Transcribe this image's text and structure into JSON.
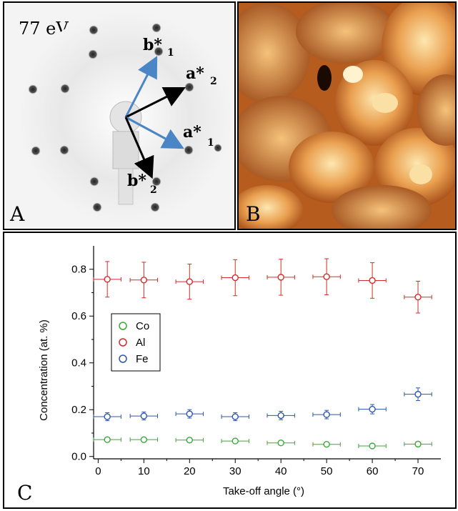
{
  "panels": {
    "a": {
      "letter": "A",
      "energy_label": "77 eV",
      "vectors": [
        {
          "name": "b*",
          "sub": "1",
          "color": "#4a86c6"
        },
        {
          "name": "a*",
          "sub": "2",
          "color": "#000000"
        },
        {
          "name": "a*",
          "sub": "1",
          "color": "#4a86c6"
        },
        {
          "name": "b*",
          "sub": "2",
          "color": "#000000"
        }
      ]
    },
    "b": {
      "letter": "B"
    },
    "c": {
      "letter": "C"
    }
  },
  "chart_data": {
    "type": "scatter",
    "xlabel": "Take-off angle (°)",
    "ylabel": "Concentration (at. %)",
    "xlim": [
      -1,
      75
    ],
    "ylim": [
      -0.01,
      0.9
    ],
    "xticks": [
      0,
      10,
      20,
      30,
      40,
      50,
      60,
      70
    ],
    "yticks": [
      0.0,
      0.2,
      0.4,
      0.6,
      0.8
    ],
    "ytick_labels": [
      "0.0",
      "0.2",
      "0.4",
      "0.6",
      "0.8"
    ],
    "legend_position": "center-left",
    "x_error": 3,
    "series": [
      {
        "name": "Co",
        "color": "#3aa83a",
        "x": [
          2,
          10,
          20,
          30,
          40,
          50,
          60,
          70
        ],
        "y": [
          0.072,
          0.072,
          0.07,
          0.066,
          0.058,
          0.052,
          0.045,
          0.053
        ],
        "yerr": [
          0.008,
          0.008,
          0.008,
          0.008,
          0.007,
          0.007,
          0.006,
          0.007
        ]
      },
      {
        "name": "Al",
        "color": "#d42a2a",
        "x": [
          2,
          10,
          20,
          30,
          40,
          50,
          60,
          70
        ],
        "y": [
          0.757,
          0.754,
          0.747,
          0.764,
          0.766,
          0.768,
          0.752,
          0.681
        ],
        "yerr": [
          0.076,
          0.076,
          0.075,
          0.077,
          0.077,
          0.077,
          0.076,
          0.068
        ]
      },
      {
        "name": "Fe",
        "color": "#2e57a8",
        "x": [
          2,
          10,
          20,
          30,
          40,
          50,
          60,
          70
        ],
        "y": [
          0.17,
          0.173,
          0.182,
          0.17,
          0.175,
          0.179,
          0.202,
          0.266
        ],
        "yerr": [
          0.017,
          0.017,
          0.018,
          0.017,
          0.018,
          0.018,
          0.02,
          0.027
        ]
      }
    ]
  }
}
